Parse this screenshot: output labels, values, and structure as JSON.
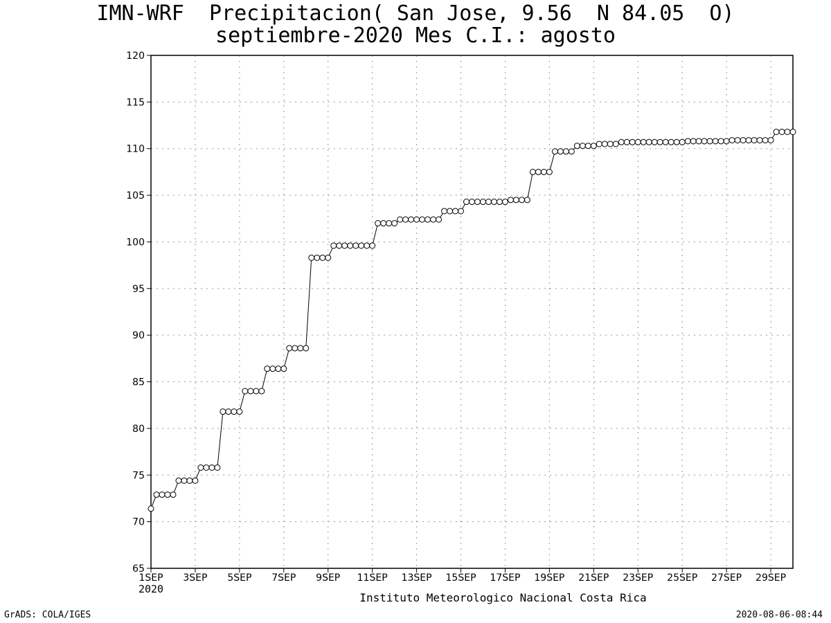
{
  "header": {
    "title_line1": "IMN-WRF  Precipitacion( San Jose, 9.56  N 84.05  O)",
    "title_line2": "septiembre-2020 Mes C.I.: agosto"
  },
  "footer": {
    "left": "GrADS: COLA/IGES",
    "right": "2020-08-06-08:44"
  },
  "chart_data": {
    "type": "line",
    "title": "IMN-WRF  Precipitacion( San Jose, 9.56  N 84.05  O)",
    "subtitle": "septiembre-2020 Mes C.I.: agosto",
    "xlabel": "Instituto Meteorologico Nacional Costa Rica",
    "ylabel": "",
    "x_year_label": "2020",
    "xlim": [
      1,
      30
    ],
    "ylim": [
      65,
      120
    ],
    "yticks": [
      65,
      70,
      75,
      80,
      85,
      90,
      95,
      100,
      105,
      110,
      115,
      120
    ],
    "xticks": [
      {
        "day": 1,
        "label": "1SEP"
      },
      {
        "day": 3,
        "label": "3SEP"
      },
      {
        "day": 5,
        "label": "5SEP"
      },
      {
        "day": 7,
        "label": "7SEP"
      },
      {
        "day": 9,
        "label": "9SEP"
      },
      {
        "day": 11,
        "label": "11SEP"
      },
      {
        "day": 13,
        "label": "13SEP"
      },
      {
        "day": 15,
        "label": "15SEP"
      },
      {
        "day": 17,
        "label": "17SEP"
      },
      {
        "day": 19,
        "label": "19SEP"
      },
      {
        "day": 21,
        "label": "21SEP"
      },
      {
        "day": 23,
        "label": "23SEP"
      },
      {
        "day": 25,
        "label": "25SEP"
      },
      {
        "day": 27,
        "label": "27SEP"
      },
      {
        "day": 29,
        "label": "29SEP"
      }
    ],
    "grid": true,
    "marker": "open-circle",
    "line_color": "#000000",
    "series": [
      {
        "values": [
          71.4,
          72.9,
          72.9,
          72.9,
          72.9,
          74.4,
          74.4,
          74.4,
          74.4,
          75.8,
          75.8,
          75.8,
          75.8,
          81.8,
          81.8,
          81.8,
          81.8,
          84.0,
          84.0,
          84.0,
          84.0,
          86.4,
          86.4,
          86.4,
          86.4,
          88.6,
          88.6,
          88.6,
          88.6,
          98.3,
          98.3,
          98.3,
          98.3,
          99.6,
          99.6,
          99.6,
          99.6,
          99.6,
          99.6,
          99.6,
          99.6,
          102.0,
          102.0,
          102.0,
          102.0,
          102.4,
          102.4,
          102.4,
          102.4,
          102.4,
          102.4,
          102.4,
          102.4,
          103.3,
          103.3,
          103.3,
          103.3,
          104.3,
          104.3,
          104.3,
          104.3,
          104.3,
          104.3,
          104.3,
          104.3,
          104.5,
          104.5,
          104.5,
          104.5,
          107.5,
          107.5,
          107.5,
          107.5,
          109.7,
          109.7,
          109.7,
          109.7,
          110.3,
          110.3,
          110.3,
          110.3,
          110.5,
          110.5,
          110.5,
          110.5,
          110.7,
          110.7,
          110.7,
          110.7,
          110.7,
          110.7,
          110.7,
          110.7,
          110.7,
          110.7,
          110.7,
          110.7,
          110.8,
          110.8,
          110.8,
          110.8,
          110.8,
          110.8,
          110.8,
          110.8,
          110.9,
          110.9,
          110.9,
          110.9,
          110.9,
          110.9,
          110.9,
          110.9,
          111.8,
          111.8,
          111.8,
          111.8
        ]
      }
    ]
  }
}
